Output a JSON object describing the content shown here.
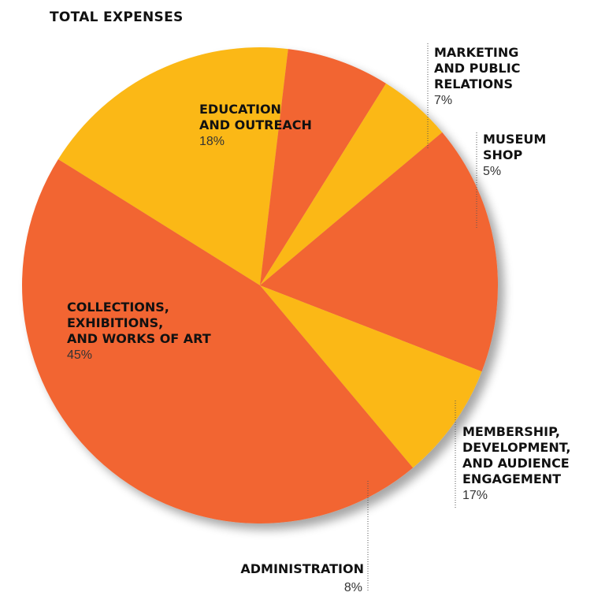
{
  "chart_data": {
    "type": "pie",
    "title": "TOTAL EXPENSES",
    "slices": [
      {
        "label": [
          "EDUCATION",
          "AND OUTREACH"
        ],
        "value_text": "18%",
        "value": 18,
        "color": "#FBB817"
      },
      {
        "label": [
          "MARKETING",
          "AND PUBLIC",
          "RELATIONS"
        ],
        "value_text": "7%",
        "value": 7,
        "color": "#F26531"
      },
      {
        "label": [
          "MUSEUM",
          "SHOP"
        ],
        "value_text": "5%",
        "value": 5,
        "color": "#FBB817"
      },
      {
        "label": [
          "MEMBERSHIP,",
          "DEVELOPMENT,",
          "AND AUDIENCE",
          "ENGAGEMENT"
        ],
        "value_text": "17%",
        "value": 17,
        "color": "#F26531"
      },
      {
        "label": [
          "ADMINISTRATION"
        ],
        "value_text": "8%",
        "value": 8,
        "color": "#FBB817"
      },
      {
        "label": [
          "COLLECTIONS,",
          "EXHIBITIONS,",
          "AND WORKS OF ART"
        ],
        "value_text": "45%",
        "value": 45,
        "color": "#F26531"
      }
    ]
  }
}
